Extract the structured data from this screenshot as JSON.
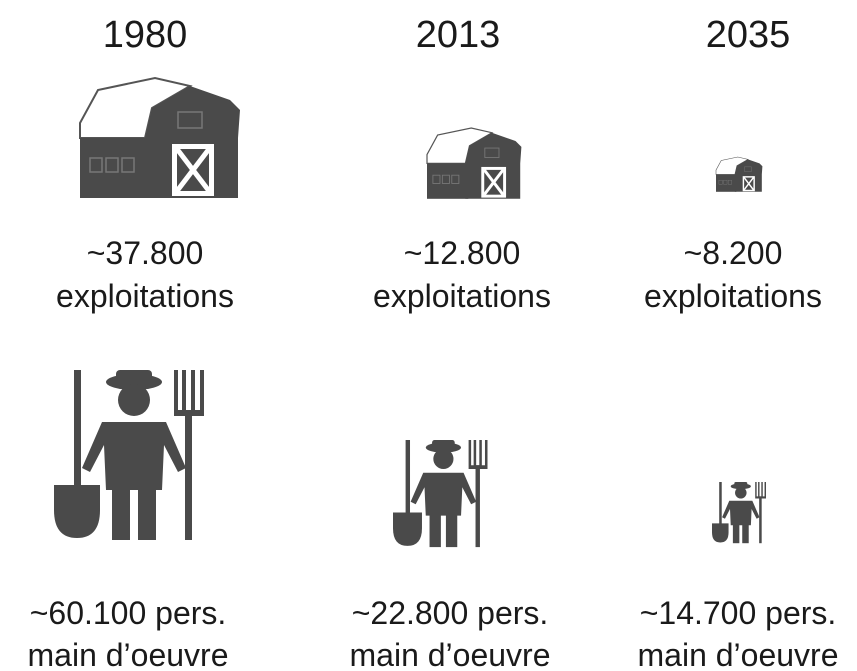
{
  "columns": [
    {
      "year": "1980",
      "farms": "~37.800",
      "farms_label": "exploitations",
      "workers": "~60.100 pers.",
      "workers_label": "main d’oeuvre"
    },
    {
      "year": "2013",
      "farms": "~12.800",
      "farms_label": "exploitations",
      "workers": "~22.800 pers.",
      "workers_label": "main d’oeuvre"
    },
    {
      "year": "2035",
      "farms": "~8.200",
      "farms_label": "exploitations",
      "workers": "~14.700 pers.",
      "workers_label": "main d’oeuvre"
    }
  ]
}
